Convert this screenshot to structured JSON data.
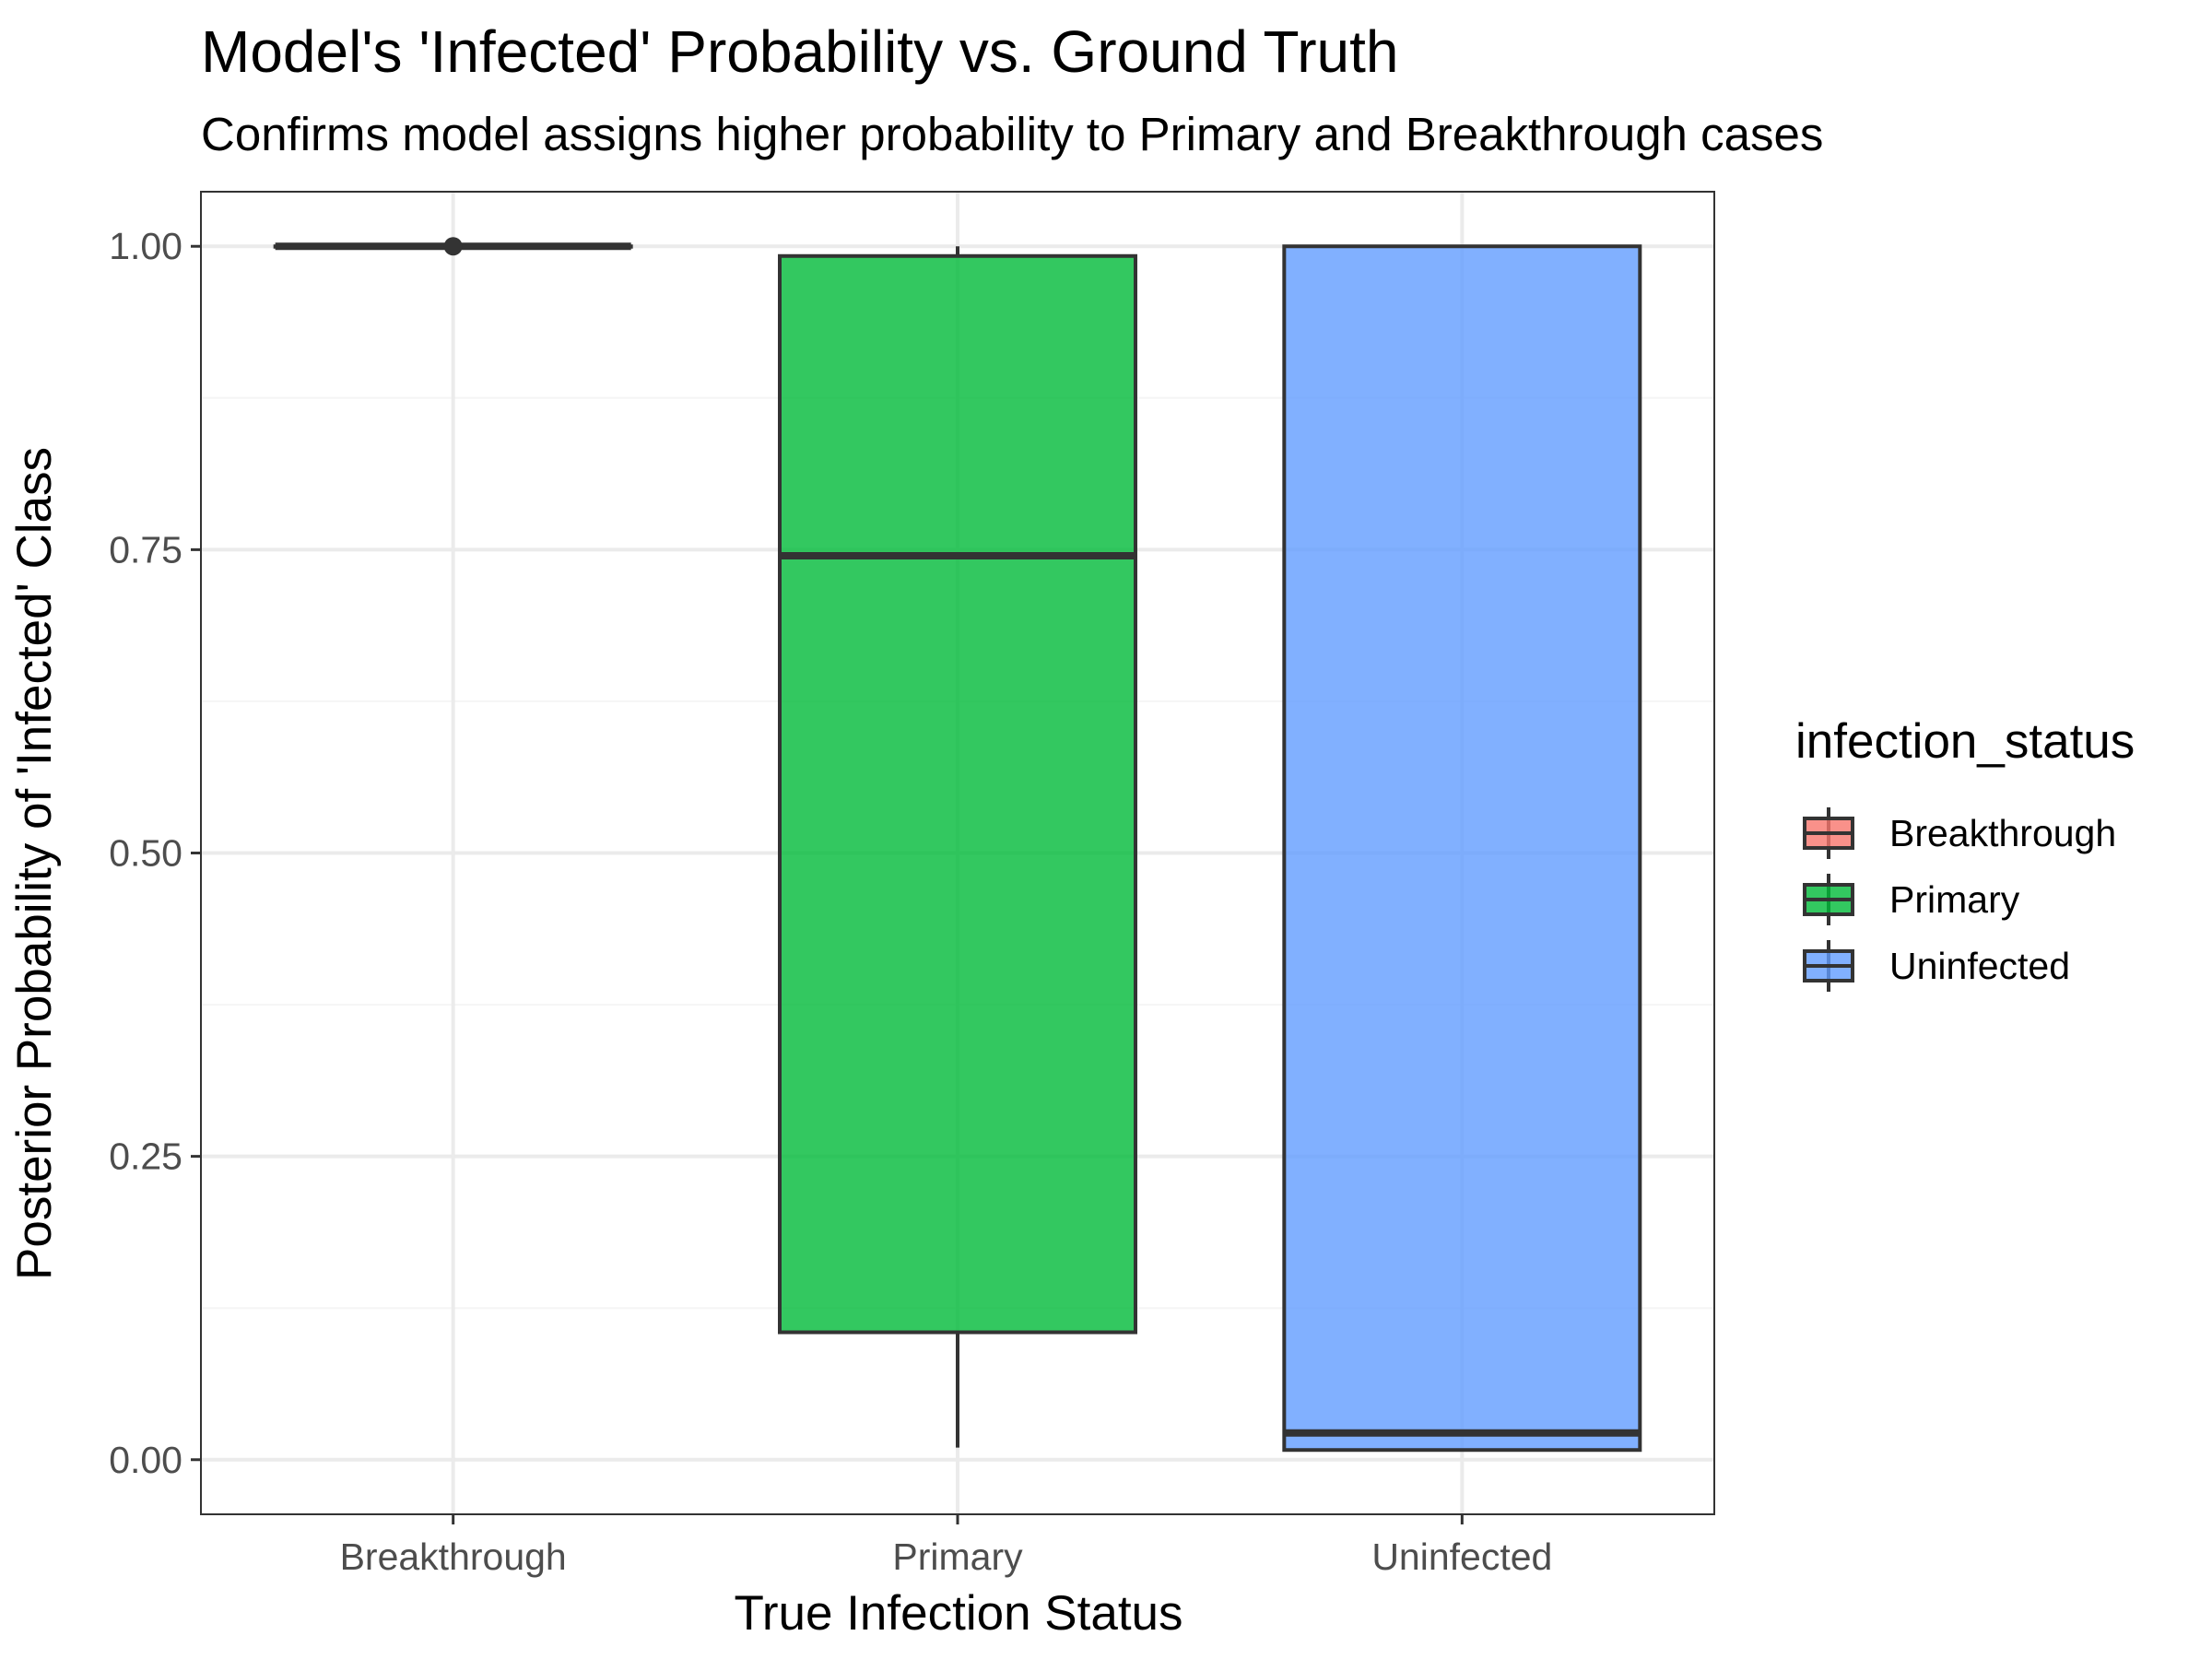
{
  "chart_data": {
    "type": "boxplot",
    "title": "Model's 'Infected' Probability vs. Ground Truth",
    "subtitle": "Confirms model assigns higher probability to Primary and Breakthrough cases",
    "xlabel": "True Infection Status",
    "ylabel": "Posterior Probability of 'Infected' Class",
    "ylim": [
      -0.045,
      1.045
    ],
    "yticks": [
      0,
      0.25,
      0.5,
      0.75,
      1
    ],
    "ytick_labels": [
      "0.00",
      "0.25",
      "0.50",
      "0.75",
      "1.00"
    ],
    "categories": [
      "Breakthrough",
      "Primary",
      "Uninfected"
    ],
    "boxes": [
      {
        "category": "Breakthrough",
        "whisker_low": 1.0,
        "q1": 1.0,
        "median": 1.0,
        "q3": 1.0,
        "whisker_high": 1.0,
        "outliers": [
          1.0
        ],
        "color": "#F8766D"
      },
      {
        "category": "Primary",
        "whisker_low": 0.01,
        "q1": 0.105,
        "median": 0.745,
        "q3": 0.992,
        "whisker_high": 1.0,
        "outliers": [],
        "color": "#00BA38"
      },
      {
        "category": "Uninfected",
        "whisker_low": 0.008,
        "q1": 0.008,
        "median": 0.022,
        "q3": 1.0,
        "whisker_high": 1.0,
        "outliers": [],
        "color": "#619CFF"
      }
    ],
    "legend": {
      "title": "infection_status",
      "position": "right",
      "items": [
        "Breakthrough",
        "Primary",
        "Uninfected"
      ]
    },
    "grid": true,
    "theme": "bw"
  },
  "colors": {
    "box_outline": "#333333",
    "grid_major": "#ebebeb",
    "grid_minor": "#f5f5f5",
    "panel_border": "#333333"
  }
}
